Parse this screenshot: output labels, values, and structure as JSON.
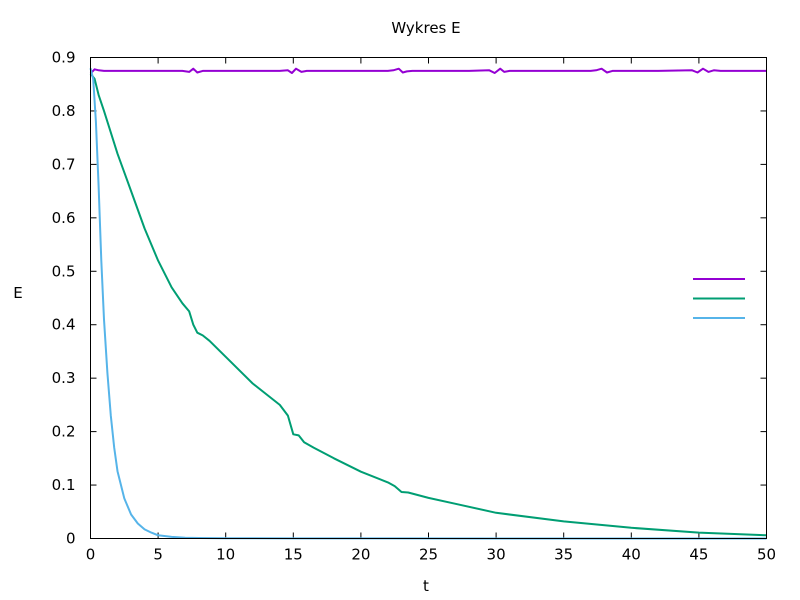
{
  "chart_data": {
    "type": "line",
    "title": "Wykres E",
    "xlabel": "t",
    "ylabel": "E",
    "xlim": [
      0,
      50
    ],
    "ylim": [
      0,
      0.9
    ],
    "xticks": [
      0,
      5,
      10,
      15,
      20,
      25,
      30,
      35,
      40,
      45,
      50
    ],
    "yticks": [
      0,
      0.1,
      0.2,
      0.3,
      0.4,
      0.5,
      0.6,
      0.7,
      0.8,
      0.9
    ],
    "grid": false,
    "legend_position": "right",
    "series": [
      {
        "color": "#9400d3",
        "x": [
          0,
          0.3,
          0.6,
          1,
          2,
          3,
          4,
          5,
          6,
          6.8,
          7.3,
          7.6,
          7.9,
          8.3,
          8.8,
          10,
          12,
          14,
          14.6,
          14.9,
          15.2,
          15.6,
          16,
          16.5,
          18,
          20,
          22,
          22.4,
          22.8,
          23.1,
          23.4,
          23.8,
          24.3,
          26,
          28,
          29.5,
          29.9,
          30.3,
          30.6,
          31,
          31.5,
          33,
          35,
          37,
          37.4,
          37.8,
          38.2,
          38.6,
          39,
          40,
          42,
          44.5,
          44.9,
          45.3,
          45.7,
          46.1,
          46.6,
          48,
          50
        ],
        "y": [
          0.87,
          0.878,
          0.876,
          0.875,
          0.875,
          0.875,
          0.875,
          0.875,
          0.875,
          0.875,
          0.873,
          0.879,
          0.872,
          0.875,
          0.875,
          0.875,
          0.875,
          0.875,
          0.876,
          0.871,
          0.879,
          0.873,
          0.875,
          0.875,
          0.875,
          0.875,
          0.875,
          0.876,
          0.879,
          0.872,
          0.874,
          0.875,
          0.875,
          0.875,
          0.875,
          0.876,
          0.871,
          0.879,
          0.873,
          0.875,
          0.875,
          0.875,
          0.875,
          0.875,
          0.876,
          0.879,
          0.872,
          0.875,
          0.875,
          0.875,
          0.875,
          0.876,
          0.872,
          0.879,
          0.873,
          0.876,
          0.875,
          0.875,
          0.875
        ]
      },
      {
        "color": "#009e73",
        "x": [
          0,
          0.3,
          0.6,
          1,
          2,
          3,
          4,
          5,
          6,
          6.8,
          7.3,
          7.6,
          7.9,
          8.3,
          8.8,
          10,
          12,
          14,
          14.6,
          15.0,
          15.4,
          15.8,
          16.5,
          18,
          20,
          22,
          22.5,
          23.0,
          23.5,
          25,
          27,
          30,
          35,
          40,
          45,
          50
        ],
        "y": [
          0.87,
          0.86,
          0.83,
          0.8,
          0.72,
          0.65,
          0.58,
          0.52,
          0.47,
          0.44,
          0.425,
          0.4,
          0.385,
          0.38,
          0.37,
          0.34,
          0.29,
          0.25,
          0.23,
          0.195,
          0.193,
          0.18,
          0.17,
          0.15,
          0.125,
          0.105,
          0.098,
          0.087,
          0.086,
          0.076,
          0.065,
          0.048,
          0.032,
          0.02,
          0.011,
          0.006
        ]
      },
      {
        "color": "#56b4e9",
        "x": [
          0,
          0.2,
          0.4,
          0.6,
          0.8,
          1.0,
          1.25,
          1.5,
          1.75,
          2.0,
          2.5,
          3.0,
          3.5,
          4.0,
          4.5,
          5.0,
          6.0,
          7.0,
          8.0,
          10,
          15,
          20,
          30,
          40,
          50
        ],
        "y": [
          0.88,
          0.86,
          0.78,
          0.66,
          0.52,
          0.41,
          0.31,
          0.23,
          0.17,
          0.126,
          0.075,
          0.045,
          0.028,
          0.017,
          0.011,
          0.006,
          0.003,
          0.0015,
          0.001,
          0.0005,
          0.0002,
          0.0001,
          0,
          0,
          0
        ]
      }
    ]
  }
}
